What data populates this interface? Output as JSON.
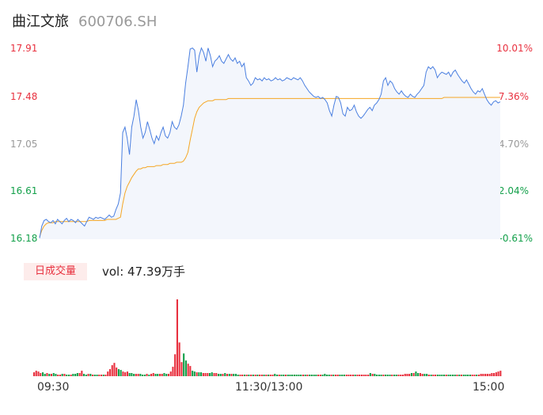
{
  "header": {
    "name": "曲江文旅",
    "code": "600706.SH"
  },
  "colors": {
    "price_line": "#4a7fe0",
    "avg_line": "#f5a623",
    "up": "#e8313f",
    "down": "#13a04a",
    "neutral": "#999999"
  },
  "volume": {
    "badge": "日成交量",
    "text": "vol: 47.39万手"
  },
  "chart_data": {
    "type": "line",
    "series": [
      {
        "name": "",
        "values": [
          16.19,
          16.3,
          16.35,
          16.36,
          16.34,
          16.33,
          16.35,
          16.32,
          16.36,
          16.34,
          16.32,
          16.35,
          16.37,
          16.34,
          16.36,
          16.35,
          16.33,
          16.36,
          16.34,
          16.32,
          16.3,
          16.34,
          16.38,
          16.37,
          16.36,
          16.38,
          16.37,
          16.38,
          16.37,
          16.36,
          16.38,
          16.4,
          16.38,
          16.39,
          16.45,
          16.5,
          16.6,
          17.15,
          17.2,
          17.1,
          16.95,
          17.2,
          17.3,
          17.45,
          17.35,
          17.2,
          17.1,
          17.15,
          17.25,
          17.18,
          17.1,
          17.05,
          17.12,
          17.08,
          17.15,
          17.2,
          17.12,
          17.1,
          17.15,
          17.25,
          17.2,
          17.18,
          17.22,
          17.3,
          17.4,
          17.6,
          17.75,
          17.91,
          17.92,
          17.9,
          17.7,
          17.85,
          17.92,
          17.88,
          17.8,
          17.92,
          17.85,
          17.75,
          17.8,
          17.82,
          17.85,
          17.8,
          17.78,
          17.82,
          17.86,
          17.82,
          17.8,
          17.83,
          17.78,
          17.8,
          17.75,
          17.78,
          17.65,
          17.62,
          17.58,
          17.6,
          17.65,
          17.63,
          17.64,
          17.62,
          17.65,
          17.63,
          17.64,
          17.62,
          17.63,
          17.65,
          17.63,
          17.64,
          17.62,
          17.63,
          17.65,
          17.64,
          17.63,
          17.65,
          17.64,
          17.63,
          17.65,
          17.62,
          17.58,
          17.55,
          17.52,
          17.5,
          17.48,
          17.47,
          17.48,
          17.46,
          17.47,
          17.45,
          17.42,
          17.35,
          17.3,
          17.4,
          17.48,
          17.47,
          17.42,
          17.32,
          17.3,
          17.38,
          17.35,
          17.36,
          17.4,
          17.34,
          17.3,
          17.28,
          17.3,
          17.33,
          17.36,
          17.38,
          17.35,
          17.4,
          17.42,
          17.45,
          17.5,
          17.62,
          17.65,
          17.58,
          17.62,
          17.6,
          17.55,
          17.52,
          17.5,
          17.53,
          17.5,
          17.48,
          17.47,
          17.5,
          17.48,
          17.47,
          17.5,
          17.52,
          17.55,
          17.58,
          17.7,
          17.75,
          17.73,
          17.75,
          17.72,
          17.65,
          17.68,
          17.7,
          17.69,
          17.68,
          17.7,
          17.66,
          17.7,
          17.72,
          17.68,
          17.65,
          17.62,
          17.6,
          17.63,
          17.59,
          17.55,
          17.52,
          17.5,
          17.53,
          17.52,
          17.55,
          17.5,
          17.45,
          17.42,
          17.4,
          17.43,
          17.44,
          17.42,
          17.43
        ]
      },
      {
        "name": "",
        "values": [
          16.2,
          16.26,
          16.3,
          16.32,
          16.33,
          16.33,
          16.33,
          16.34,
          16.34,
          16.34,
          16.34,
          16.34,
          16.34,
          16.34,
          16.34,
          16.34,
          16.34,
          16.34,
          16.34,
          16.34,
          16.34,
          16.34,
          16.35,
          16.35,
          16.35,
          16.35,
          16.35,
          16.35,
          16.35,
          16.35,
          16.36,
          16.36,
          16.36,
          16.36,
          16.36,
          16.37,
          16.38,
          16.5,
          16.6,
          16.66,
          16.7,
          16.74,
          16.77,
          16.8,
          16.82,
          16.82,
          16.83,
          16.83,
          16.84,
          16.84,
          16.84,
          16.84,
          16.85,
          16.85,
          16.85,
          16.86,
          16.86,
          16.86,
          16.87,
          16.87,
          16.87,
          16.88,
          16.88,
          16.88,
          16.89,
          16.92,
          16.97,
          17.08,
          17.18,
          17.28,
          17.34,
          17.38,
          17.4,
          17.42,
          17.43,
          17.44,
          17.44,
          17.44,
          17.45,
          17.45,
          17.45,
          17.45,
          17.45,
          17.45,
          17.46,
          17.46,
          17.46,
          17.46,
          17.46,
          17.46,
          17.46,
          17.46,
          17.46,
          17.46,
          17.46,
          17.46,
          17.46,
          17.46,
          17.46,
          17.46,
          17.46,
          17.46,
          17.46,
          17.46,
          17.46,
          17.46,
          17.46,
          17.46,
          17.46,
          17.46,
          17.46,
          17.46,
          17.46,
          17.46,
          17.46,
          17.46,
          17.46,
          17.46,
          17.46,
          17.46,
          17.46,
          17.46,
          17.46,
          17.46,
          17.46,
          17.46,
          17.46,
          17.46,
          17.46,
          17.46,
          17.46,
          17.46,
          17.46,
          17.46,
          17.46,
          17.46,
          17.46,
          17.46,
          17.46,
          17.46,
          17.46,
          17.46,
          17.46,
          17.46,
          17.46,
          17.46,
          17.46,
          17.46,
          17.46,
          17.46,
          17.46,
          17.46,
          17.46,
          17.46,
          17.46,
          17.46,
          17.46,
          17.46,
          17.46,
          17.46,
          17.46,
          17.46,
          17.46,
          17.46,
          17.46,
          17.46,
          17.46,
          17.46,
          17.46,
          17.46,
          17.46,
          17.46,
          17.46,
          17.46,
          17.46,
          17.46,
          17.46,
          17.46,
          17.46,
          17.46,
          17.47,
          17.47,
          17.47,
          17.47,
          17.47,
          17.47,
          17.47,
          17.47,
          17.47,
          17.47,
          17.47,
          17.47,
          17.47,
          17.47,
          17.47,
          17.47,
          17.47,
          17.47,
          17.47,
          17.47,
          17.47,
          17.47,
          17.47,
          17.47,
          17.47,
          17.47
        ]
      }
    ],
    "volume": [
      5,
      7,
      6,
      4,
      5,
      3,
      4,
      3,
      3,
      4,
      3,
      2,
      2,
      3,
      3,
      2,
      2,
      2,
      3,
      3,
      4,
      4,
      7,
      3,
      2,
      3,
      3,
      2,
      2,
      2,
      2,
      2,
      2,
      2,
      6,
      9,
      14,
      17,
      11,
      9,
      8,
      6,
      5,
      6,
      4,
      4,
      3,
      3,
      3,
      3,
      2,
      2,
      3,
      2,
      3,
      4,
      3,
      3,
      3,
      3,
      4,
      3,
      3,
      6,
      12,
      28,
      98,
      43,
      18,
      29,
      20,
      16,
      13,
      7,
      6,
      5,
      5,
      5,
      4,
      4,
      4,
      4,
      5,
      4,
      4,
      3,
      3,
      3,
      4,
      3,
      3,
      3,
      3,
      3,
      2,
      2,
      2,
      2,
      2,
      2,
      2,
      2,
      2,
      2,
      2,
      2,
      2,
      2,
      2,
      2,
      2,
      3,
      2,
      2,
      2,
      2,
      2,
      2,
      2,
      2,
      2,
      2,
      2,
      2,
      2,
      2,
      2,
      2,
      2,
      2,
      2,
      2,
      2,
      2,
      3,
      2,
      2,
      2,
      2,
      2,
      2,
      2,
      2,
      2,
      2,
      2,
      2,
      2,
      2,
      2,
      2,
      2,
      2,
      2,
      2,
      4,
      3,
      3,
      2,
      2,
      2,
      2,
      2,
      2,
      2,
      2,
      2,
      2,
      2,
      2,
      2,
      3,
      3,
      3,
      4,
      4,
      6,
      4,
      4,
      3,
      3,
      3,
      2,
      2,
      2,
      2,
      2,
      2,
      2,
      2,
      2,
      2,
      2,
      2,
      2,
      2,
      2,
      2,
      2,
      2,
      2,
      2,
      2,
      2,
      2,
      2,
      3,
      3,
      3,
      3,
      3,
      4,
      4,
      5,
      6,
      7
    ],
    "ylim": [
      16.18,
      17.91
    ],
    "y_ticks": [
      "17.91",
      "17.48",
      "17.05",
      "16.61",
      "16.18"
    ],
    "pct_ticks": [
      "10.01%",
      "7.36%",
      "4.70%",
      "2.04%",
      "-0.61%"
    ],
    "x_ticks": [
      "09:30",
      "11:30/13:00",
      "15:00"
    ],
    "grid": false
  }
}
